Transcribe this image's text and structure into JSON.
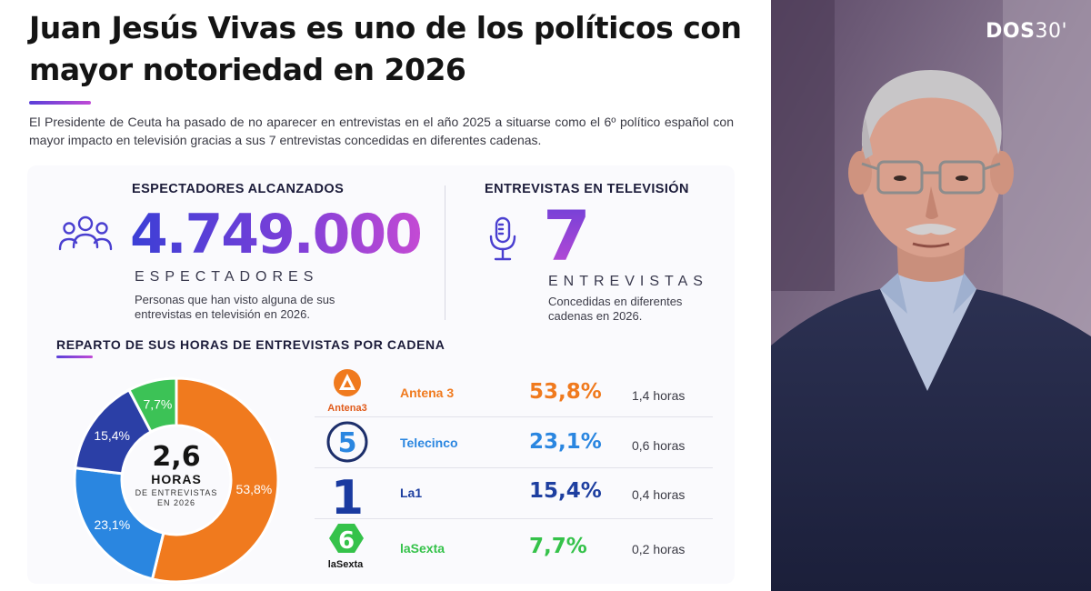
{
  "headline": "Juan Jesús Vivas es uno de los políticos con mayor notoriedad en 2026",
  "intro": "El Presidente de Ceuta ha pasado de no aparecer en entrevistas en el año 2025 a situarse como el 6º político español con mayor impacto en televisión gracias a sus 7 entrevistas concedidas en diferentes cadenas.",
  "viewers": {
    "title": "ESPECTADORES ALCANZADOS",
    "value": "4.749.000",
    "unit": "ESPECTADORES",
    "desc_line1": "Personas que han visto alguna de sus",
    "desc_line2": "entrevistas en televisión en 2026.",
    "icon": "people-icon"
  },
  "interviews": {
    "title": "ENTREVISTAS EN TELEVISIÓN",
    "value": "7",
    "unit": "ENTREVISTAS",
    "desc_line1": "Concedidas en diferentes",
    "desc_line2": "cadenas en 2026.",
    "icon": "microphone-icon"
  },
  "distribution": {
    "title": "REPARTO DE SUS HORAS DE ENTREVISTAS POR CADENA",
    "center_value": "2,6",
    "center_label": "HORAS",
    "center_sub1": "DE ENTREVISTAS",
    "center_sub2": "EN 2026"
  },
  "channels": [
    {
      "name": "Antena 3",
      "logo_text": "Antena3",
      "pct": "53,8%",
      "hours": "1,4 horas",
      "color": "#f07a1e"
    },
    {
      "name": "Telecinco",
      "logo_text": "",
      "pct": "23,1%",
      "hours": "0,6 horas",
      "color": "#2a86e0"
    },
    {
      "name": "La1",
      "logo_text": "",
      "pct": "15,4%",
      "hours": "0,4 horas",
      "color": "#1e3fa0"
    },
    {
      "name": "laSexta",
      "logo_text": "laSexta",
      "pct": "7,7%",
      "hours": "0,2 horas",
      "color": "#35c24a"
    }
  ],
  "chart_data": {
    "type": "pie",
    "categories": [
      "Antena 3",
      "Telecinco",
      "La1",
      "laSexta"
    ],
    "values": [
      53.8,
      23.1,
      15.4,
      7.7
    ],
    "labels": [
      "53,8%",
      "23,1%",
      "15,4%",
      "7,7%"
    ],
    "colors": [
      "#f07a1e",
      "#2a86e0",
      "#2b3fa6",
      "#3cc256"
    ]
  },
  "brand": {
    "strong": "DOS",
    "light": "30'"
  },
  "colors": {
    "accent_purple": "#6a3fd8",
    "accent_magenta": "#c44ad4"
  }
}
